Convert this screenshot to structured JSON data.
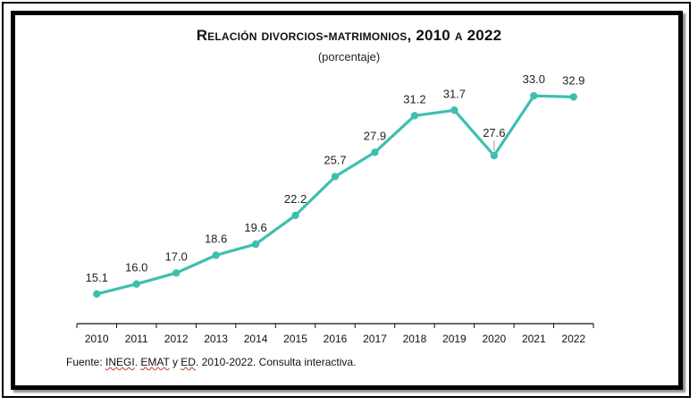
{
  "chart_data": {
    "type": "line",
    "title": "Relación divorcios-matrimonios, 2010 a 2022",
    "subtitle": "(porcentaje)",
    "x": [
      "2010",
      "2011",
      "2012",
      "2013",
      "2014",
      "2015",
      "2016",
      "2017",
      "2018",
      "2019",
      "2020",
      "2021",
      "2022"
    ],
    "series": [
      {
        "values": [
          15.1,
          16.0,
          17.0,
          18.6,
          19.6,
          22.2,
          25.7,
          27.9,
          31.2,
          31.7,
          27.6,
          33.0,
          32.9
        ]
      }
    ],
    "labels": [
      "15.1",
      "16.0",
      "17.0",
      "18.6",
      "19.6",
      "22.2",
      "25.7",
      "27.9",
      "31.2",
      "31.7",
      "27.6",
      "33.0",
      "32.9"
    ],
    "ylim": [
      10,
      36
    ],
    "grid": false,
    "line_color": "#3dbfb0"
  },
  "source": {
    "prefix": "Fuente: ",
    "inegi": "INEGI",
    "sep1": ". ",
    "emat": "EMAT",
    "sep2": " y ",
    "ed": "ED",
    "suffix": ". 2010-2022. Consulta  interactiva."
  }
}
